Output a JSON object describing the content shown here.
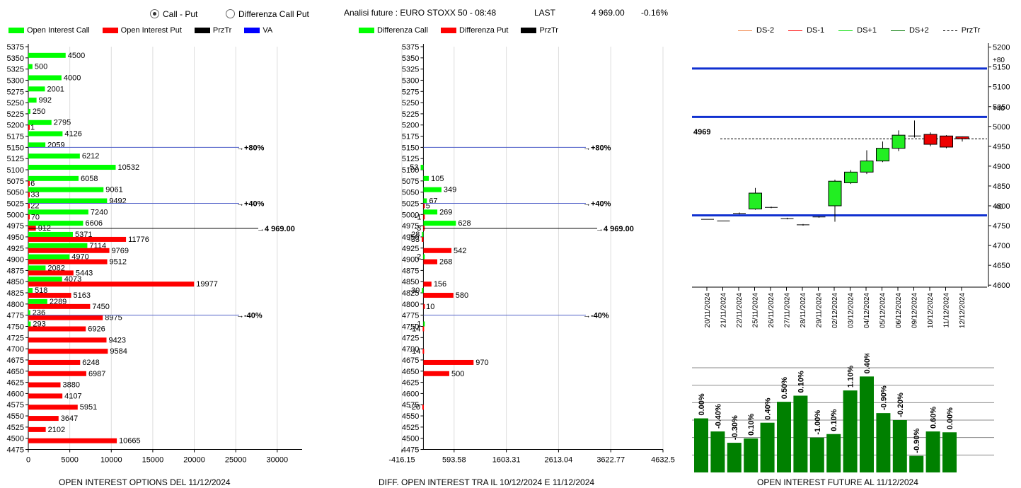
{
  "header": {
    "radio_call_put": "Call - Put",
    "radio_diff": "Differenza Call Put",
    "future_title": "Analisi future : EURO STOXX 50 - 08:48",
    "last_label": "LAST",
    "last_value": "4 969.00",
    "last_change": "-0.16%"
  },
  "legend1": [
    {
      "label": "Open Interest Call",
      "color": "#00ff00"
    },
    {
      "label": "Open Interest Put",
      "color": "#ff0000"
    },
    {
      "label": "PrzTr",
      "color": "#000000"
    },
    {
      "label": "VA",
      "color": "#0000ff"
    }
  ],
  "legend2": [
    {
      "label": "Differenza Call",
      "color": "#00ff00"
    },
    {
      "label": "Differenza Put",
      "color": "#ff0000"
    },
    {
      "label": "PrzTr",
      "color": "#000000"
    }
  ],
  "legend3": [
    {
      "label": "DS-2",
      "color": "#f08040",
      "style": "solid"
    },
    {
      "label": "DS-1",
      "color": "#ff0000",
      "style": "solid"
    },
    {
      "label": "DS+1",
      "color": "#00dd00",
      "style": "solid"
    },
    {
      "label": "DS+2",
      "color": "#007700",
      "style": "solid"
    },
    {
      "label": "PrzTr",
      "color": "#000000",
      "style": "dashed"
    }
  ],
  "captions": {
    "c1": "OPEN INTEREST OPTIONS DEL 11/12/2024",
    "c2": "DIFF. OPEN INTEREST TRA IL 10/12/2024 E 11/12/2024",
    "c3": "OPEN INTEREST FUTURE AL 11/12/2024"
  },
  "chart_data": [
    {
      "type": "bar",
      "orientation": "horizontal",
      "strikes": [
        5375,
        5350,
        5325,
        5300,
        5275,
        5250,
        5225,
        5200,
        5175,
        5150,
        5125,
        5100,
        5075,
        5050,
        5025,
        5000,
        4975,
        4950,
        4925,
        4900,
        4875,
        4850,
        4825,
        4800,
        4775,
        4750,
        4725,
        4700,
        4675,
        4650,
        4625,
        4600,
        4575,
        4550,
        4525,
        4500,
        4475
      ],
      "series": [
        {
          "name": "Open Interest Call",
          "color": "#00ff00",
          "values": [
            null,
            4500,
            500,
            4000,
            2001,
            992,
            250,
            2795,
            4126,
            2059,
            6212,
            10532,
            6058,
            9061,
            9492,
            7240,
            6606,
            5371,
            7114,
            4970,
            2082,
            4073,
            518,
            2289,
            236,
            293,
            null,
            null,
            null,
            null,
            null,
            null,
            null,
            null,
            null,
            null,
            null
          ],
          "labels": [
            "",
            "4500",
            "500",
            "4000",
            "2001",
            "992",
            "250",
            "2795",
            "4126",
            "2059",
            "6212",
            "10532",
            "6058",
            "9061",
            "9492",
            "7240",
            "6606",
            "5371",
            "7114",
            "4970",
            "2082",
            "4073",
            "518",
            "2289",
            "236",
            "293",
            "",
            "",
            "",
            "",
            "",
            "",
            "",
            "",
            "",
            "",
            ""
          ]
        },
        {
          "name": "Open Interest Put",
          "color": "#ff0000",
          "values": [
            null,
            null,
            null,
            null,
            null,
            null,
            null,
            1,
            null,
            null,
            null,
            null,
            6,
            33,
            22,
            70,
            912,
            11776,
            9769,
            9512,
            5443,
            19977,
            5163,
            7450,
            8975,
            6926,
            9423,
            9584,
            6248,
            6987,
            3880,
            4107,
            5951,
            3647,
            2102,
            10665,
            null
          ],
          "labels": [
            "",
            "",
            "",
            "",
            "",
            "",
            "",
            "1",
            "",
            "",
            "",
            "",
            "6",
            "33",
            "22",
            "70",
            "912",
            "11776",
            "9769",
            "9512",
            "5443",
            "19977",
            "5163",
            "7450",
            "8975",
            "6926",
            "9423",
            "9584",
            "6248",
            "6987",
            "3880",
            "4107",
            "5951",
            "3647",
            "2102",
            "10665",
            ""
          ]
        }
      ],
      "xticks": [
        "0",
        "5000",
        "10000",
        "15000",
        "20000",
        "25000",
        "30000"
      ],
      "xlim": [
        0,
        33000
      ],
      "yticks": [
        "5375",
        "5350",
        "5325",
        "5300",
        "5275",
        "5250",
        "5225",
        "5200",
        "5175",
        "5150",
        "5125",
        "5100",
        "5075",
        "5050",
        "5025",
        "5000",
        "4975",
        "4950",
        "4925",
        "4900",
        "4875",
        "4850",
        "4825",
        "4800",
        "4775",
        "4750",
        "4725",
        "4700",
        "4675",
        "4650",
        "4625",
        "4600",
        "4575",
        "4550",
        "4525",
        "4500",
        "4475"
      ],
      "va_lines": [
        {
          "strike": 5150,
          "label": "+80%"
        },
        {
          "strike": 5025,
          "label": "+40%"
        },
        {
          "strike": 4775,
          "label": "-40%"
        }
      ],
      "price_line": {
        "strike": 4969,
        "label": "4 969.00"
      }
    },
    {
      "type": "bar",
      "orientation": "horizontal",
      "strikes": [
        5375,
        5350,
        5325,
        5300,
        5275,
        5250,
        5225,
        5200,
        5175,
        5150,
        5125,
        5100,
        5075,
        5050,
        5025,
        5000,
        4975,
        4950,
        4925,
        4900,
        4875,
        4850,
        4825,
        4800,
        4775,
        4750,
        4725,
        4700,
        4675,
        4650,
        4625,
        4600,
        4575,
        4550,
        4525,
        4500,
        4475
      ],
      "series": [
        {
          "name": "Differenza Call",
          "color": "#00ff00",
          "values": [
            null,
            null,
            null,
            null,
            null,
            null,
            null,
            null,
            null,
            null,
            null,
            -53,
            105,
            349,
            67,
            269,
            628,
            -28,
            null,
            -2,
            null,
            null,
            -30,
            null,
            null,
            -1,
            null,
            null,
            null,
            null,
            null,
            null,
            null,
            null,
            null,
            null,
            null
          ],
          "labels": [
            "",
            "",
            "",
            "",
            "",
            "",
            "",
            "",
            "",
            "",
            "",
            "-53",
            "105",
            "349",
            "67",
            "269",
            "628",
            "-28",
            "",
            "-2",
            "",
            "",
            "-30",
            "",
            "",
            "-1",
            "",
            "",
            "",
            "",
            "",
            "",
            "",
            "",
            "",
            "",
            ""
          ]
        },
        {
          "name": "Differenza Put",
          "color": "#ff0000",
          "values": [
            null,
            null,
            null,
            null,
            null,
            null,
            null,
            null,
            null,
            null,
            null,
            null,
            null,
            null,
            5,
            -1,
            -3,
            -33,
            542,
            268,
            null,
            156,
            580,
            10,
            null,
            -14,
            null,
            -14,
            970,
            500,
            null,
            null,
            -20,
            null,
            null,
            null,
            null
          ],
          "labels": [
            "",
            "",
            "",
            "",
            "",
            "",
            "",
            "",
            "",
            "",
            "",
            "",
            "",
            "",
            "5",
            "-1",
            "-3",
            "-33",
            "542",
            "268",
            "",
            "156",
            "580",
            "10",
            "",
            "-14",
            "",
            "-14",
            "970",
            "500",
            "",
            "",
            "-20",
            "",
            "",
            "",
            ""
          ]
        }
      ],
      "xticks": [
        "-416.15",
        "593.58",
        "1603.31",
        "2613.04",
        "3622.77",
        "4632.5"
      ],
      "xlim": [
        -416.15,
        4632.5
      ],
      "va_lines": [
        {
          "strike": 5150,
          "label": "+80%"
        },
        {
          "strike": 5025,
          "label": "+40%"
        },
        {
          "strike": 4775,
          "label": "-40%"
        }
      ],
      "price_line": {
        "strike": 4969,
        "label": "4 969.00"
      }
    },
    {
      "type": "candlestick",
      "dates": [
        "20/11/2024",
        "21/11/2024",
        "22/11/2024",
        "25/11/2024",
        "26/11/2024",
        "27/11/2024",
        "28/11/2024",
        "29/11/2024",
        "02/12/2024",
        "03/12/2024",
        "04/12/2024",
        "05/12/2024",
        "06/12/2024",
        "09/12/2024",
        "10/12/2024",
        "11/12/2024",
        "12/12/2024"
      ],
      "open": [
        4766,
        4762,
        4781,
        4792,
        4796,
        4768,
        4752,
        4772,
        4800,
        4858,
        4885,
        4913,
        4945,
        4976,
        4980,
        4976,
        4974
      ],
      "close": [
        4766,
        4762,
        4781,
        4832,
        4796,
        4768,
        4752,
        4772,
        4862,
        4885,
        4913,
        4945,
        4978,
        4976,
        4955,
        4948,
        4969
      ],
      "high": [
        4766,
        4762,
        4783,
        4845,
        4798,
        4770,
        4754,
        4774,
        4866,
        4890,
        4940,
        4962,
        4990,
        5015,
        4985,
        4978,
        4975
      ],
      "low": [
        4766,
        4762,
        4779,
        4790,
        4794,
        4766,
        4750,
        4770,
        4760,
        4855,
        4880,
        4910,
        4938,
        4972,
        4950,
        4945,
        4962
      ],
      "yticks": [
        "5200",
        "5150",
        "5100",
        "5050",
        "5000",
        "4950",
        "4900",
        "4850",
        "4800",
        "4750",
        "4700",
        "4650",
        "4600"
      ],
      "ylim": [
        4595,
        5210
      ],
      "levels": [
        {
          "value": 5146,
          "label": "+80"
        },
        {
          "value": 5024,
          "label": "+40"
        },
        {
          "value": 4776,
          "label": "-40"
        }
      ],
      "price_line": {
        "value": 4969,
        "label": "4969"
      }
    },
    {
      "type": "bar",
      "categories": [
        "20/11/2024",
        "21/11/2024",
        "22/11/2024",
        "25/11/2024",
        "26/11/2024",
        "27/11/2024",
        "28/11/2024",
        "29/11/2024",
        "02/12/2024",
        "03/12/2024",
        "04/12/2024",
        "05/12/2024",
        "06/12/2024",
        "09/12/2024",
        "10/12/2024",
        "11/12/2024"
      ],
      "values": [
        0.62,
        0.47,
        0.34,
        0.39,
        0.57,
        0.81,
        0.88,
        0.4,
        0.44,
        0.94,
        1.1,
        0.68,
        0.6,
        0.19,
        0.47,
        0.46
      ],
      "labels": [
        "0.00%",
        "-0.40%",
        "-0.30%",
        "0.10%",
        "0.40%",
        "0.50%",
        "0.10%",
        "-1.00%",
        "0.10%",
        "1.10%",
        "0.40%",
        "-0.90%",
        "-0.20%",
        "-0.90%",
        "0.60%",
        "0.00%"
      ],
      "color": "#008000"
    }
  ]
}
